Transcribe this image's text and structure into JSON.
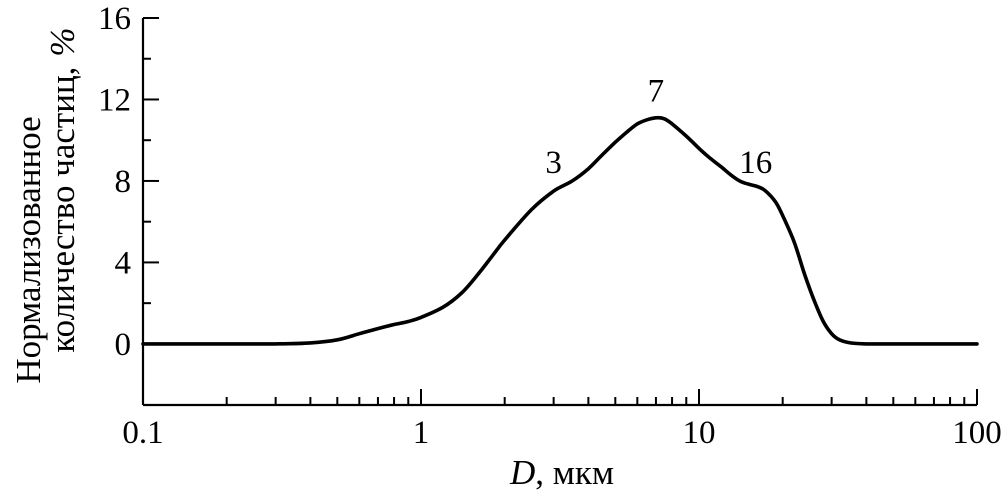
{
  "chart_data": {
    "type": "line",
    "title": "",
    "xlabel_var": "D",
    "xlabel_rest": ", мкм",
    "ylabel_line1": "Нормализованное",
    "ylabel_line2": "количество частиц,",
    "ylabel_unit": "%",
    "xscale": "log",
    "xlim": [
      0.1,
      100
    ],
    "ylim": [
      -3,
      16
    ],
    "xticks": [
      0.1,
      1,
      10,
      100
    ],
    "xtick_labels": [
      "0.1",
      "1",
      "10",
      "100"
    ],
    "yticks": [
      0,
      4,
      8,
      12,
      16
    ],
    "ytick_labels": [
      "0",
      "4",
      "8",
      "12",
      "16"
    ],
    "grid": false,
    "series": [
      {
        "x": [
          0.1,
          0.2,
          0.3,
          0.4,
          0.5,
          0.6,
          0.7,
          0.8,
          0.9,
          1.0,
          1.2,
          1.4,
          1.6,
          1.8,
          2.0,
          2.5,
          3.0,
          3.5,
          4.0,
          4.5,
          5.0,
          5.5,
          6.0,
          6.5,
          7.0,
          7.5,
          8.0,
          9.0,
          10,
          11,
          12,
          13,
          14,
          15,
          16,
          17,
          18,
          19,
          20,
          22,
          24,
          26,
          28,
          30,
          32,
          35,
          40,
          45,
          50,
          60,
          80,
          100
        ],
        "y": [
          0,
          0,
          0,
          0.05,
          0.2,
          0.5,
          0.75,
          0.95,
          1.1,
          1.3,
          1.8,
          2.5,
          3.4,
          4.3,
          5.1,
          6.6,
          7.5,
          8.0,
          8.6,
          9.3,
          9.9,
          10.4,
          10.8,
          11.0,
          11.1,
          11.05,
          10.8,
          10.2,
          9.6,
          9.1,
          8.7,
          8.3,
          8.0,
          7.85,
          7.75,
          7.6,
          7.3,
          6.9,
          6.3,
          5.0,
          3.4,
          2.1,
          1.1,
          0.5,
          0.2,
          0.05,
          0,
          0,
          0,
          0,
          0,
          0
        ]
      }
    ],
    "annotations": [
      {
        "text": "3",
        "x": 3,
        "y": 8.4
      },
      {
        "text": "7",
        "x": 7,
        "y": 11.9
      },
      {
        "text": "16",
        "x": 16,
        "y": 8.4
      }
    ]
  }
}
